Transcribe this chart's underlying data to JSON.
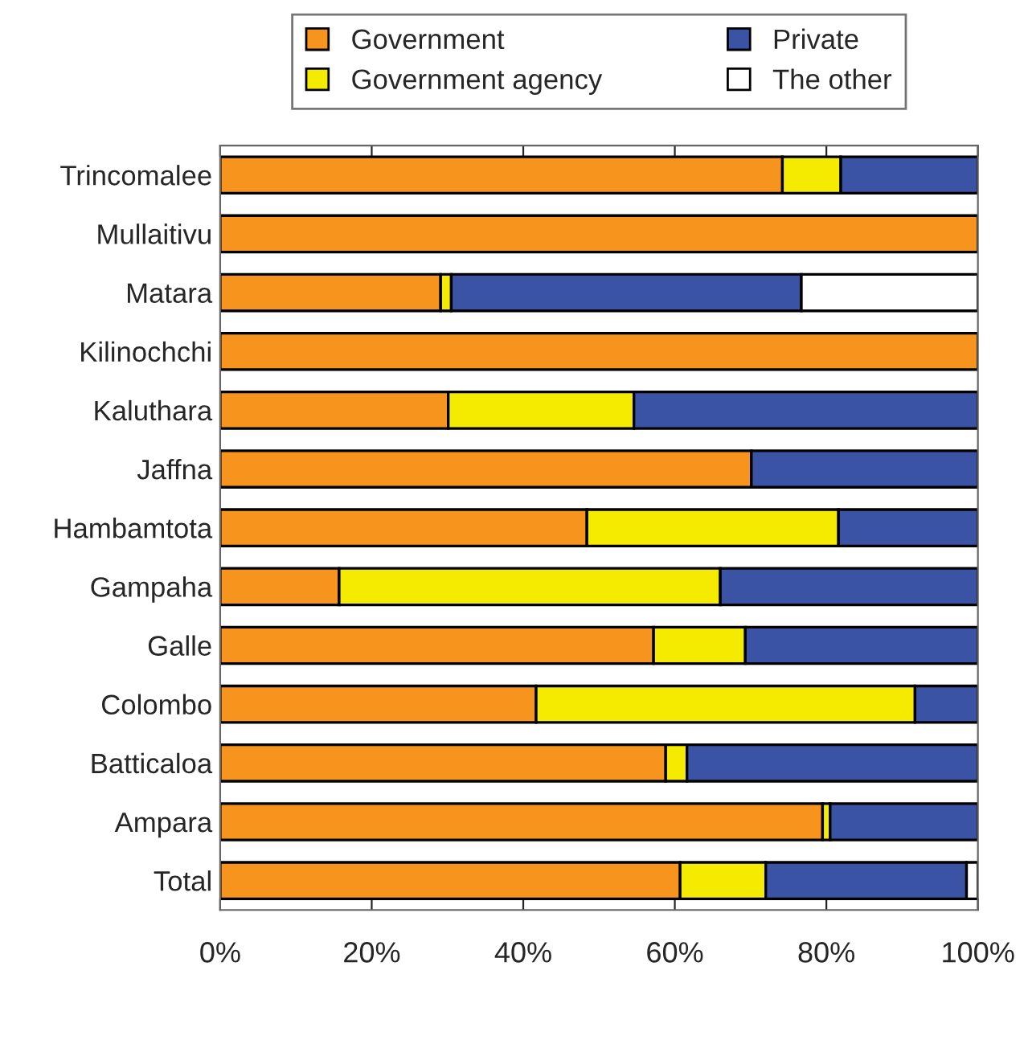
{
  "chart_data": {
    "type": "bar",
    "orientation": "horizontal",
    "stacked": true,
    "categories": [
      "Trincomalee",
      "Mullaitivu",
      "Matara",
      "Kilinochchi",
      "Kaluthara",
      "Jaffna",
      "Hambamtota",
      "Gampaha",
      "Galle",
      "Colombo",
      "Batticaloa",
      "Ampara",
      "Total"
    ],
    "series": [
      {
        "name": "Government",
        "color": "#f7941d",
        "values": [
          74.2,
          100,
          29.1,
          100,
          30.1,
          70.1,
          48.4,
          15.7,
          57.2,
          41.7,
          58.8,
          79.5,
          60.7
        ]
      },
      {
        "name": "Government agency",
        "color": "#f5eb00",
        "values": [
          7.7,
          null,
          1.4,
          null,
          24.5,
          null,
          33.2,
          50.3,
          12.1,
          50.0,
          2.8,
          1.0,
          11.3
        ]
      },
      {
        "name": "Private",
        "color": "#3a53a4",
        "values": [
          18.1,
          null,
          46.2,
          null,
          45.4,
          29.9,
          18.4,
          34.0,
          30.7,
          8.3,
          38.4,
          19.5,
          26.5
        ]
      },
      {
        "name": "The other",
        "color": "#ffffff",
        "values": [
          null,
          null,
          23.3,
          null,
          null,
          null,
          null,
          null,
          null,
          null,
          null,
          null,
          1.5
        ]
      }
    ],
    "xlim": [
      0,
      100
    ],
    "xticks": [
      {
        "value": 0,
        "label": "0%"
      },
      {
        "value": 20,
        "label": "20%"
      },
      {
        "value": 40,
        "label": "40%"
      },
      {
        "value": 60,
        "label": "60%"
      },
      {
        "value": 80,
        "label": "80%"
      },
      {
        "value": 100,
        "label": "100%"
      }
    ],
    "grid": false,
    "legend": "top"
  }
}
